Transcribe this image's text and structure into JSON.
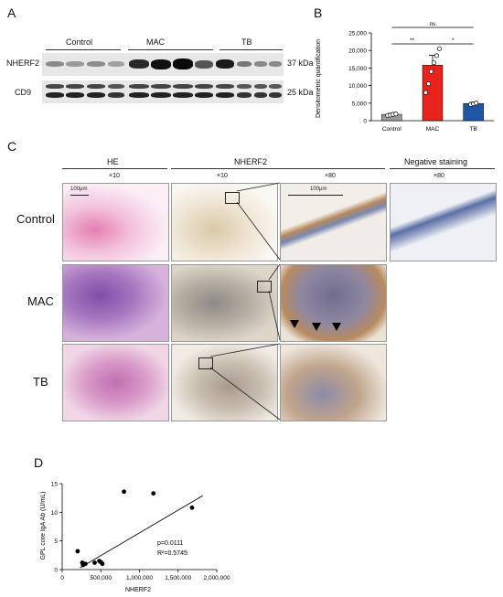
{
  "panels": {
    "a": "A",
    "b": "B",
    "c": "C",
    "d": "D"
  },
  "western": {
    "groups": [
      "Control",
      "MAC",
      "TB"
    ],
    "rows": [
      {
        "protein": "NHERF2",
        "size": "37 kDa"
      },
      {
        "protein": "CD9",
        "size": "25 kDa"
      }
    ]
  },
  "chart_b": {
    "type": "bar",
    "ylabel": "Densitometric quantification",
    "yticks": [
      "0",
      "5,000",
      "10,000",
      "15,000",
      "20,000",
      "25,000"
    ],
    "ylim": [
      0,
      25000
    ],
    "categories": [
      "Control",
      "MAC",
      "TB"
    ],
    "values": [
      1800,
      15800,
      4900
    ],
    "errors": [
      300,
      2800,
      350
    ],
    "colors": [
      "#9a9a9a",
      "#e8231e",
      "#1e55a5"
    ],
    "points": [
      [
        1500,
        1600,
        1800,
        1900
      ],
      [
        8000,
        10500,
        14000,
        16500,
        18500,
        20500
      ],
      [
        4600,
        4800,
        5000
      ]
    ],
    "sig": [
      {
        "label": "**",
        "pair": "Control-MAC"
      },
      {
        "label": "*",
        "pair": "MAC-TB"
      },
      {
        "label": "ns",
        "pair": "Control-TB"
      }
    ]
  },
  "histology": {
    "col_headers": [
      "HE",
      "NHERF2",
      "Negative staining"
    ],
    "magnifications": [
      "×10",
      "×10",
      "×80",
      "×80"
    ],
    "rows": [
      "Control",
      "MAC",
      "TB"
    ],
    "scalebars": [
      "100μm",
      "100μm"
    ]
  },
  "chart_data": {
    "type": "scatter",
    "x": [
      200000,
      260000,
      270000,
      300000,
      420000,
      480000,
      500000,
      520000,
      800000,
      1180000,
      1680000
    ],
    "y": [
      3.2,
      1.2,
      0.8,
      1.0,
      1.2,
      1.5,
      1.3,
      1.0,
      13.6,
      13.3,
      10.8
    ],
    "xlabel": "NHERF2",
    "ylabel": "GPL core IgA Ab (U/mL)",
    "xticks": [
      "0",
      "500,000",
      "1,000,000",
      "1,500,000",
      "2,000,000"
    ],
    "yticks": [
      "0",
      "5",
      "10",
      "15"
    ],
    "xlim": [
      0,
      2000000
    ],
    "ylim": [
      0,
      15
    ],
    "fit": {
      "x0": 230000,
      "y0": 0.3,
      "x1": 1820000,
      "y1": 12.9
    },
    "annotations": [
      "p=0.0111",
      "R²=0.5745"
    ]
  }
}
